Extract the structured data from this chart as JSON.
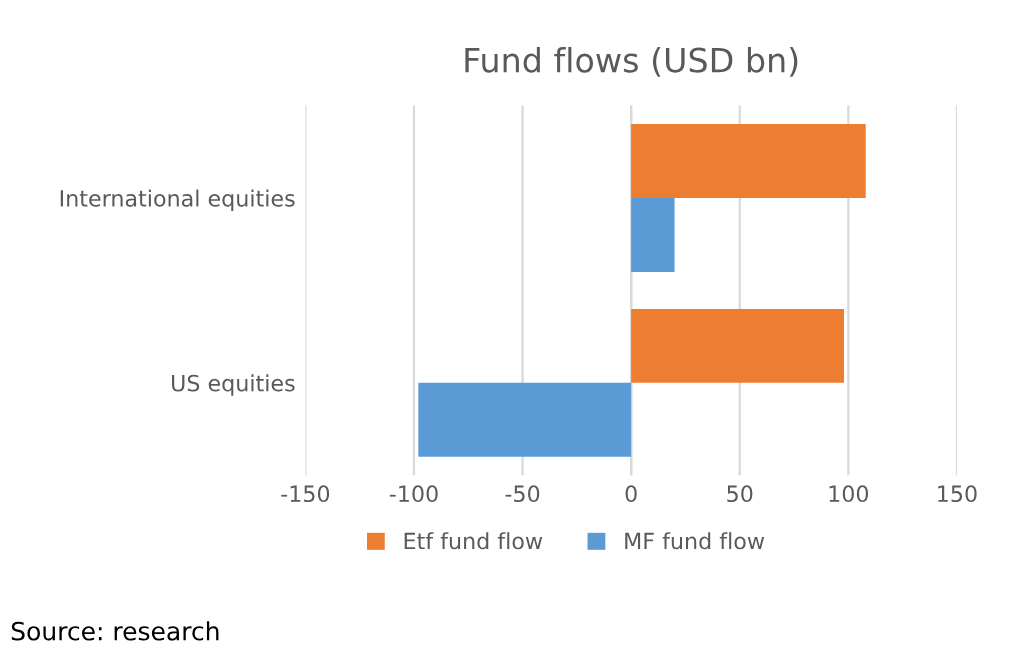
{
  "chart_data": {
    "type": "bar",
    "orientation": "horizontal",
    "title": "Fund flows (USD bn)",
    "categories": [
      "International equities",
      "US equities"
    ],
    "series": [
      {
        "name": "Etf fund flow",
        "color": "#ed7d31",
        "values": [
          108,
          98
        ]
      },
      {
        "name": "MF fund flow",
        "color": "#5b9bd5",
        "values": [
          20,
          -98
        ]
      }
    ],
    "xlim": [
      -150,
      150
    ],
    "xticks": [
      -150,
      -100,
      -50,
      0,
      50,
      100,
      150
    ],
    "grid": "x",
    "legend": "bottom",
    "annotations": [
      "Source: research"
    ]
  }
}
